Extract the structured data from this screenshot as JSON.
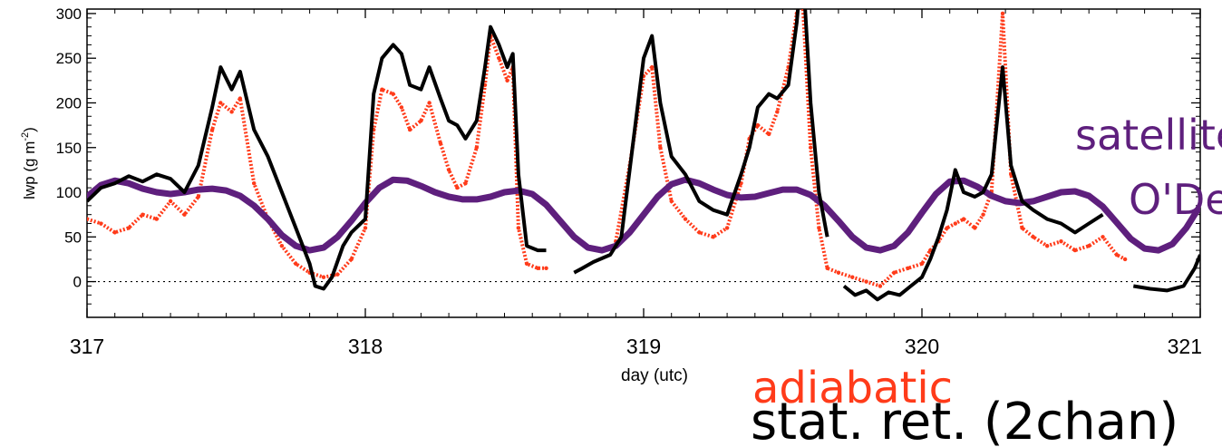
{
  "chart_data": {
    "type": "line",
    "title": "",
    "xlabel": "day (utc)",
    "ylabel_main": "lwp (g m",
    "ylabel_sup": "-2",
    "ylabel_close": ")",
    "xlim": [
      317,
      321
    ],
    "ylim": [
      -40,
      305
    ],
    "x_ticks": [
      "317",
      "318",
      "319",
      "320",
      "321"
    ],
    "y_ticks": [
      "0",
      "50",
      "100",
      "150",
      "200",
      "250",
      "300"
    ],
    "zero_line": "dotted",
    "legend": {
      "satellite_label": "satellite",
      "odell_label": "O'Dell",
      "adiabatic_label": "adiabatic",
      "statret_label": "stat. ret. (2chan)"
    },
    "series": [
      {
        "name": "stat. ret. (2chan)",
        "color": "#000000",
        "style": "line",
        "points": [
          [
            317.0,
            90
          ],
          [
            317.05,
            105
          ],
          [
            317.1,
            110
          ],
          [
            317.15,
            118
          ],
          [
            317.2,
            112
          ],
          [
            317.25,
            120
          ],
          [
            317.3,
            115
          ],
          [
            317.35,
            100
          ],
          [
            317.4,
            130
          ],
          [
            317.45,
            195
          ],
          [
            317.48,
            240
          ],
          [
            317.52,
            215
          ],
          [
            317.55,
            235
          ],
          [
            317.6,
            170
          ],
          [
            317.65,
            140
          ],
          [
            317.7,
            100
          ],
          [
            317.75,
            60
          ],
          [
            317.8,
            20
          ],
          [
            317.82,
            -5
          ],
          [
            317.85,
            -8
          ],
          [
            317.88,
            5
          ],
          [
            317.92,
            40
          ],
          [
            317.95,
            55
          ],
          [
            318.0,
            70
          ],
          [
            318.03,
            210
          ],
          [
            318.06,
            250
          ],
          [
            318.1,
            265
          ],
          [
            318.13,
            255
          ],
          [
            318.16,
            220
          ],
          [
            318.2,
            215
          ],
          [
            318.23,
            240
          ],
          [
            318.27,
            205
          ],
          [
            318.3,
            180
          ],
          [
            318.33,
            175
          ],
          [
            318.36,
            160
          ],
          [
            318.4,
            180
          ],
          [
            318.43,
            240
          ],
          [
            318.45,
            285
          ],
          [
            318.48,
            265
          ],
          [
            318.51,
            240
          ],
          [
            318.53,
            255
          ],
          [
            318.55,
            120
          ],
          [
            318.58,
            40
          ],
          [
            318.62,
            35
          ],
          [
            318.65,
            35
          ],
          [
            318.7,
            null
          ],
          [
            318.75,
            10
          ],
          [
            318.78,
            15
          ],
          [
            318.82,
            22
          ],
          [
            318.88,
            30
          ],
          [
            318.92,
            50
          ],
          [
            318.96,
            150
          ],
          [
            319.0,
            250
          ],
          [
            319.03,
            275
          ],
          [
            319.06,
            200
          ],
          [
            319.1,
            140
          ],
          [
            319.15,
            120
          ],
          [
            319.2,
            90
          ],
          [
            319.25,
            80
          ],
          [
            319.3,
            75
          ],
          [
            319.35,
            120
          ],
          [
            319.38,
            150
          ],
          [
            319.41,
            195
          ],
          [
            319.45,
            210
          ],
          [
            319.48,
            205
          ],
          [
            319.52,
            220
          ],
          [
            319.55,
            290
          ],
          [
            319.57,
            360
          ],
          [
            319.6,
            200
          ],
          [
            319.63,
            100
          ],
          [
            319.66,
            50
          ],
          [
            319.7,
            null
          ],
          [
            319.72,
            -5
          ],
          [
            319.76,
            -15
          ],
          [
            319.8,
            -10
          ],
          [
            319.84,
            -20
          ],
          [
            319.88,
            -12
          ],
          [
            319.92,
            -15
          ],
          [
            319.96,
            -5
          ],
          [
            320.0,
            5
          ],
          [
            320.03,
            25
          ],
          [
            320.06,
            50
          ],
          [
            320.09,
            80
          ],
          [
            320.12,
            125
          ],
          [
            320.15,
            100
          ],
          [
            320.19,
            95
          ],
          [
            320.22,
            100
          ],
          [
            320.25,
            120
          ],
          [
            320.29,
            240
          ],
          [
            320.32,
            130
          ],
          [
            320.36,
            90
          ],
          [
            320.4,
            80
          ],
          [
            320.45,
            70
          ],
          [
            320.5,
            65
          ],
          [
            320.55,
            55
          ],
          [
            320.6,
            65
          ],
          [
            320.65,
            75
          ],
          [
            320.7,
            null
          ],
          [
            320.76,
            -5
          ],
          [
            320.82,
            -8
          ],
          [
            320.88,
            -10
          ],
          [
            320.94,
            -5
          ],
          [
            320.98,
            15
          ],
          [
            321.0,
            30
          ]
        ]
      },
      {
        "name": "adiabatic",
        "color": "#ff3b1a",
        "style": "dots",
        "points": [
          [
            317.0,
            70
          ],
          [
            317.05,
            65
          ],
          [
            317.1,
            55
          ],
          [
            317.15,
            60
          ],
          [
            317.2,
            75
          ],
          [
            317.25,
            70
          ],
          [
            317.3,
            90
          ],
          [
            317.35,
            75
          ],
          [
            317.4,
            95
          ],
          [
            317.45,
            170
          ],
          [
            317.48,
            200
          ],
          [
            317.52,
            190
          ],
          [
            317.55,
            205
          ],
          [
            317.6,
            110
          ],
          [
            317.65,
            70
          ],
          [
            317.7,
            40
          ],
          [
            317.75,
            20
          ],
          [
            317.8,
            10
          ],
          [
            317.85,
            5
          ],
          [
            317.9,
            8
          ],
          [
            317.95,
            25
          ],
          [
            318.0,
            60
          ],
          [
            318.03,
            170
          ],
          [
            318.06,
            215
          ],
          [
            318.1,
            210
          ],
          [
            318.13,
            195
          ],
          [
            318.16,
            170
          ],
          [
            318.2,
            180
          ],
          [
            318.23,
            200
          ],
          [
            318.27,
            155
          ],
          [
            318.3,
            125
          ],
          [
            318.33,
            105
          ],
          [
            318.36,
            110
          ],
          [
            318.4,
            150
          ],
          [
            318.43,
            220
          ],
          [
            318.45,
            275
          ],
          [
            318.48,
            250
          ],
          [
            318.51,
            225
          ],
          [
            318.53,
            240
          ],
          [
            318.55,
            60
          ],
          [
            318.58,
            20
          ],
          [
            318.62,
            15
          ],
          [
            318.65,
            15
          ],
          [
            318.7,
            null
          ],
          [
            318.9,
            45
          ],
          [
            318.95,
            130
          ],
          [
            319.0,
            230
          ],
          [
            319.03,
            240
          ],
          [
            319.06,
            150
          ],
          [
            319.1,
            90
          ],
          [
            319.15,
            70
          ],
          [
            319.2,
            55
          ],
          [
            319.25,
            50
          ],
          [
            319.3,
            60
          ],
          [
            319.35,
            110
          ],
          [
            319.38,
            160
          ],
          [
            319.41,
            175
          ],
          [
            319.45,
            165
          ],
          [
            319.48,
            190
          ],
          [
            319.52,
            240
          ],
          [
            319.55,
            300
          ],
          [
            319.57,
            320
          ],
          [
            319.6,
            150
          ],
          [
            319.63,
            60
          ],
          [
            319.66,
            15
          ],
          [
            319.7,
            10
          ],
          [
            319.75,
            5
          ],
          [
            319.8,
            0
          ],
          [
            319.85,
            -5
          ],
          [
            319.9,
            10
          ],
          [
            319.95,
            15
          ],
          [
            320.0,
            20
          ],
          [
            320.03,
            35
          ],
          [
            320.06,
            45
          ],
          [
            320.09,
            60
          ],
          [
            320.12,
            65
          ],
          [
            320.15,
            70
          ],
          [
            320.19,
            60
          ],
          [
            320.22,
            75
          ],
          [
            320.25,
            100
          ],
          [
            320.29,
            300
          ],
          [
            320.32,
            120
          ],
          [
            320.36,
            60
          ],
          [
            320.4,
            50
          ],
          [
            320.45,
            40
          ],
          [
            320.5,
            45
          ],
          [
            320.55,
            35
          ],
          [
            320.6,
            40
          ],
          [
            320.65,
            50
          ],
          [
            320.7,
            30
          ],
          [
            320.73,
            25
          ]
        ]
      },
      {
        "name": "satellite / O'Dell",
        "color": "#5e1f7d",
        "style": "sine",
        "points": [
          [
            317.0,
            95
          ],
          [
            317.05,
            108
          ],
          [
            317.1,
            113
          ],
          [
            317.15,
            110
          ],
          [
            317.2,
            104
          ],
          [
            317.25,
            100
          ],
          [
            317.3,
            98
          ],
          [
            317.35,
            100
          ],
          [
            317.4,
            103
          ],
          [
            317.45,
            104
          ],
          [
            317.5,
            102
          ],
          [
            317.55,
            96
          ],
          [
            317.6,
            85
          ],
          [
            317.65,
            70
          ],
          [
            317.7,
            52
          ],
          [
            317.75,
            40
          ],
          [
            317.8,
            35
          ],
          [
            317.85,
            38
          ],
          [
            317.9,
            50
          ],
          [
            317.95,
            68
          ],
          [
            318.0,
            88
          ],
          [
            318.05,
            105
          ],
          [
            318.1,
            114
          ],
          [
            318.15,
            113
          ],
          [
            318.2,
            107
          ],
          [
            318.25,
            100
          ],
          [
            318.3,
            95
          ],
          [
            318.35,
            92
          ],
          [
            318.4,
            92
          ],
          [
            318.45,
            95
          ],
          [
            318.5,
            100
          ],
          [
            318.55,
            102
          ],
          [
            318.6,
            98
          ],
          [
            318.65,
            86
          ],
          [
            318.7,
            68
          ],
          [
            318.75,
            50
          ],
          [
            318.8,
            38
          ],
          [
            318.85,
            35
          ],
          [
            318.9,
            40
          ],
          [
            318.95,
            55
          ],
          [
            319.0,
            75
          ],
          [
            319.05,
            95
          ],
          [
            319.1,
            109
          ],
          [
            319.15,
            114
          ],
          [
            319.2,
            110
          ],
          [
            319.25,
            103
          ],
          [
            319.3,
            97
          ],
          [
            319.35,
            94
          ],
          [
            319.4,
            95
          ],
          [
            319.45,
            99
          ],
          [
            319.5,
            103
          ],
          [
            319.55,
            103
          ],
          [
            319.6,
            97
          ],
          [
            319.65,
            85
          ],
          [
            319.7,
            68
          ],
          [
            319.75,
            50
          ],
          [
            319.8,
            38
          ],
          [
            319.85,
            35
          ],
          [
            319.9,
            40
          ],
          [
            319.95,
            55
          ],
          [
            320.0,
            77
          ],
          [
            320.05,
            98
          ],
          [
            320.1,
            112
          ],
          [
            320.15,
            113
          ],
          [
            320.2,
            106
          ],
          [
            320.25,
            96
          ],
          [
            320.3,
            90
          ],
          [
            320.35,
            88
          ],
          [
            320.4,
            90
          ],
          [
            320.45,
            95
          ],
          [
            320.5,
            100
          ],
          [
            320.55,
            101
          ],
          [
            320.6,
            96
          ],
          [
            320.65,
            84
          ],
          [
            320.7,
            66
          ],
          [
            320.75,
            48
          ],
          [
            320.8,
            37
          ],
          [
            320.85,
            35
          ],
          [
            320.9,
            42
          ],
          [
            320.95,
            60
          ],
          [
            321.0,
            85
          ]
        ]
      }
    ]
  }
}
